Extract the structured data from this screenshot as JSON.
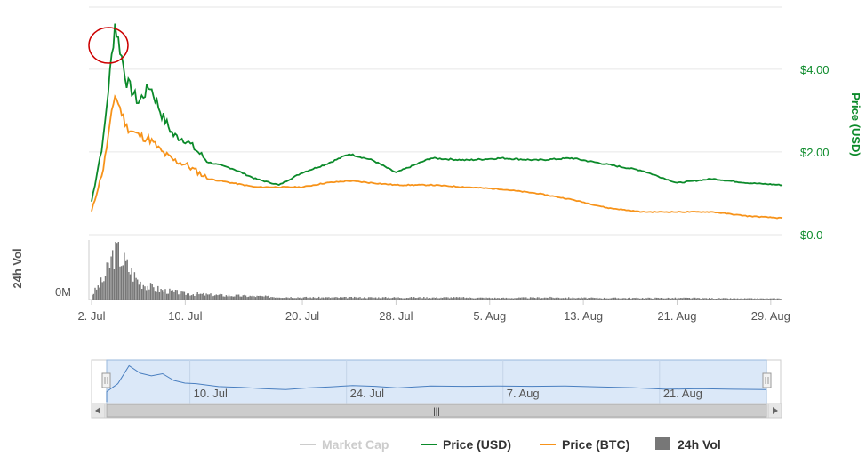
{
  "chart_data": {
    "type": "line",
    "x_range": [
      "2018-07-02",
      "2018-08-30"
    ],
    "x_tick_labels": [
      "2. Jul",
      "10. Jul",
      "20. Jul",
      "28. Jul",
      "5. Aug",
      "13. Aug",
      "21. Aug",
      "29. Aug"
    ],
    "price_axis": {
      "title": "Price (USD)",
      "ticks": [
        "$0.0",
        "$2.00",
        "$4.00"
      ],
      "ylim": [
        0,
        5.5
      ]
    },
    "volume_axis": {
      "title": "24h Vol",
      "ticks": [
        "0M"
      ]
    },
    "series": [
      {
        "name": "Price (USD)",
        "color": "#0b8a2a",
        "x": [
          "2018-07-02",
          "2018-07-03",
          "2018-07-04",
          "2018-07-05",
          "2018-07-06",
          "2018-07-07",
          "2018-07-08",
          "2018-07-09",
          "2018-07-10",
          "2018-07-12",
          "2018-07-14",
          "2018-07-16",
          "2018-07-18",
          "2018-07-20",
          "2018-07-22",
          "2018-07-24",
          "2018-07-26",
          "2018-07-28",
          "2018-07-31",
          "2018-08-03",
          "2018-08-06",
          "2018-08-09",
          "2018-08-12",
          "2018-08-15",
          "2018-08-18",
          "2018-08-21",
          "2018-08-24",
          "2018-08-27",
          "2018-08-30"
        ],
        "values": [
          0.8,
          2.3,
          5.1,
          3.7,
          3.2,
          3.6,
          2.9,
          2.4,
          2.3,
          1.75,
          1.6,
          1.35,
          1.2,
          1.5,
          1.7,
          1.95,
          1.8,
          1.5,
          1.85,
          1.8,
          1.85,
          1.8,
          1.85,
          1.7,
          1.55,
          1.25,
          1.35,
          1.25,
          1.2
        ]
      },
      {
        "name": "Price (BTC)",
        "color": "#f7931a",
        "x": [
          "2018-07-02",
          "2018-07-03",
          "2018-07-04",
          "2018-07-05",
          "2018-07-06",
          "2018-07-07",
          "2018-07-08",
          "2018-07-09",
          "2018-07-10",
          "2018-07-12",
          "2018-07-14",
          "2018-07-16",
          "2018-07-18",
          "2018-07-20",
          "2018-07-22",
          "2018-07-24",
          "2018-07-26",
          "2018-07-28",
          "2018-07-31",
          "2018-08-03",
          "2018-08-06",
          "2018-08-09",
          "2018-08-12",
          "2018-08-15",
          "2018-08-18",
          "2018-08-21",
          "2018-08-24",
          "2018-08-27",
          "2018-08-30"
        ],
        "values": [
          0.55,
          1.6,
          3.4,
          2.6,
          2.4,
          2.3,
          2.0,
          1.8,
          1.7,
          1.35,
          1.25,
          1.15,
          1.15,
          1.15,
          1.25,
          1.3,
          1.25,
          1.2,
          1.2,
          1.15,
          1.1,
          1.0,
          0.85,
          0.65,
          0.55,
          0.55,
          0.55,
          0.45,
          0.4
        ]
      },
      {
        "name": "24h Vol",
        "type": "bar",
        "color": "#777777",
        "x": [
          "2018-07-02",
          "2018-07-03",
          "2018-07-04",
          "2018-07-05",
          "2018-07-06",
          "2018-07-07",
          "2018-07-08",
          "2018-07-10",
          "2018-07-12",
          "2018-07-15",
          "2018-07-18",
          "2018-07-21",
          "2018-07-25",
          "2018-07-29",
          "2018-08-02",
          "2018-08-06",
          "2018-08-10",
          "2018-08-14",
          "2018-08-18",
          "2018-08-22",
          "2018-08-26",
          "2018-08-30"
        ],
        "values": [
          10,
          40,
          100,
          65,
          35,
          25,
          18,
          12,
          9,
          7,
          5,
          4,
          4,
          4,
          4,
          3,
          4,
          3,
          3,
          3,
          2,
          2
        ]
      },
      {
        "name": "Market Cap",
        "color": "#cccccc",
        "hidden": true
      }
    ],
    "annotation": "red circle around peak near 4. Jul",
    "legend_placement": "bottom",
    "navigator": {
      "tick_labels": [
        "10. Jul",
        "24. Jul",
        "7. Aug",
        "21. Aug"
      ],
      "scroll_grip": "|||"
    }
  }
}
